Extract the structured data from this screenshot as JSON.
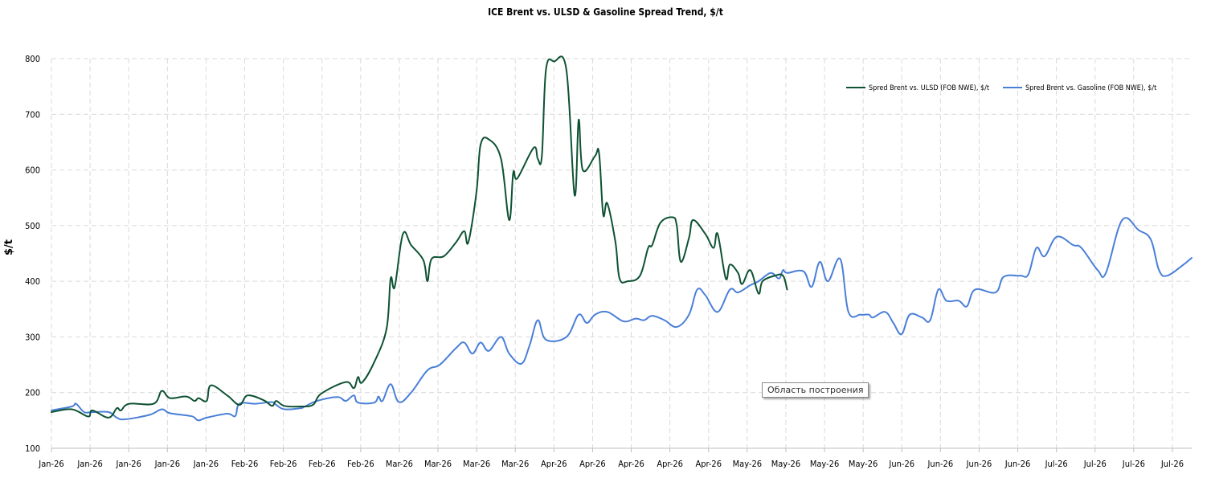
{
  "chart_data": {
    "type": "line",
    "title": "ICE Brent vs. ULSD & Gasoline Spread Trend, $/t",
    "xlabel": "",
    "ylabel": "$/t",
    "ylim": [
      100,
      800
    ],
    "yticks": [
      100,
      200,
      300,
      400,
      500,
      600,
      700,
      800
    ],
    "grid": true,
    "legend_position": "top-right",
    "x_tick_labels": [
      "Jan-26",
      "Jan-26",
      "Jan-26",
      "Jan-26",
      "Jan-26",
      "Feb-26",
      "Feb-26",
      "Feb-26",
      "Feb-26",
      "Mar-26",
      "Mar-26",
      "Mar-26",
      "Mar-26",
      "Apr-26",
      "Apr-26",
      "Apr-26",
      "Apr-26",
      "Apr-26",
      "May-26",
      "May-26",
      "May-26",
      "May-26",
      "Jun-26",
      "Jun-26",
      "Jun-26",
      "Jun-26",
      "Jul-26",
      "Jul-26",
      "Jul-26",
      "Jul-26"
    ],
    "x_count": 145,
    "series": [
      {
        "name": "Spred Brent vs. ULSD (FOB NWE), $/t",
        "color": "#0e5233",
        "points": [
          [
            0,
            165
          ],
          [
            5,
            170
          ],
          [
            9,
            157
          ],
          [
            10,
            168
          ],
          [
            14,
            155
          ],
          [
            16,
            172
          ],
          [
            17,
            168
          ],
          [
            19,
            180
          ],
          [
            25,
            180
          ],
          [
            27,
            203
          ],
          [
            29,
            190
          ],
          [
            33,
            193
          ],
          [
            35,
            185
          ],
          [
            36,
            190
          ],
          [
            38,
            185
          ],
          [
            39,
            213
          ],
          [
            43,
            195
          ],
          [
            46,
            178
          ],
          [
            48,
            195
          ],
          [
            52,
            186
          ],
          [
            54,
            176
          ],
          [
            55,
            185
          ],
          [
            57,
            176
          ],
          [
            61,
            175
          ],
          [
            64,
            178
          ],
          [
            66,
            198
          ],
          [
            72,
            219
          ],
          [
            74,
            208
          ],
          [
            75,
            228
          ],
          [
            76,
            218
          ],
          [
            79,
            255
          ],
          [
            82,
            315
          ],
          [
            83,
            405
          ],
          [
            84,
            390
          ],
          [
            86,
            485
          ],
          [
            88,
            465
          ],
          [
            91,
            438
          ],
          [
            92,
            400
          ],
          [
            93,
            440
          ],
          [
            96,
            445
          ],
          [
            99,
            470
          ],
          [
            101,
            490
          ],
          [
            102,
            470
          ],
          [
            104,
            560
          ],
          [
            105,
            645
          ],
          [
            107,
            655
          ],
          [
            110,
            620
          ],
          [
            112,
            510
          ],
          [
            113,
            595
          ],
          [
            114,
            585
          ],
          [
            118,
            640
          ],
          [
            119,
            620
          ],
          [
            120,
            625
          ],
          [
            121,
            780
          ],
          [
            123,
            795
          ],
          [
            126,
            780
          ],
          [
            128,
            555
          ],
          [
            129,
            690
          ],
          [
            130,
            600
          ],
          [
            133,
            625
          ],
          [
            134,
            630
          ],
          [
            135,
            520
          ],
          [
            136,
            540
          ],
          [
            138,
            470
          ],
          [
            139,
            405
          ],
          [
            141,
            400
          ],
          [
            144,
            410
          ],
          [
            146,
            460
          ],
          [
            147,
            465
          ],
          [
            149,
            505
          ],
          [
            152,
            515
          ],
          [
            153,
            500
          ],
          [
            154,
            435
          ],
          [
            156,
            478
          ],
          [
            157,
            510
          ],
          [
            160,
            485
          ],
          [
            162,
            460
          ],
          [
            163,
            485
          ],
          [
            165,
            405
          ],
          [
            166,
            430
          ],
          [
            168,
            415
          ],
          [
            169,
            395
          ],
          [
            171,
            420
          ],
          [
            173,
            378
          ],
          [
            174,
            400
          ],
          [
            177,
            410
          ],
          [
            179,
            410
          ],
          [
            180,
            385
          ]
        ]
      },
      {
        "name": "Spred Brent vs. Gasoline (FOB NWE), $/t",
        "color": "#4a7fd8",
        "points": [
          [
            0,
            168
          ],
          [
            5,
            175
          ],
          [
            6,
            180
          ],
          [
            8,
            165
          ],
          [
            10,
            165
          ],
          [
            14,
            165
          ],
          [
            16,
            155
          ],
          [
            18,
            152
          ],
          [
            24,
            160
          ],
          [
            27,
            170
          ],
          [
            29,
            163
          ],
          [
            34,
            158
          ],
          [
            35,
            155
          ],
          [
            36,
            150
          ],
          [
            38,
            155
          ],
          [
            43,
            162
          ],
          [
            45,
            158
          ],
          [
            46,
            180
          ],
          [
            50,
            180
          ],
          [
            54,
            183
          ],
          [
            55,
            178
          ],
          [
            57,
            170
          ],
          [
            61,
            172
          ],
          [
            62,
            175
          ],
          [
            65,
            185
          ],
          [
            70,
            192
          ],
          [
            72,
            185
          ],
          [
            74,
            195
          ],
          [
            75,
            182
          ],
          [
            79,
            182
          ],
          [
            80,
            193
          ],
          [
            81,
            185
          ],
          [
            83,
            215
          ],
          [
            85,
            183
          ],
          [
            88,
            200
          ],
          [
            92,
            240
          ],
          [
            95,
            250
          ],
          [
            99,
            280
          ],
          [
            101,
            290
          ],
          [
            103,
            270
          ],
          [
            105,
            290
          ],
          [
            107,
            275
          ],
          [
            110,
            300
          ],
          [
            112,
            270
          ],
          [
            115,
            252
          ],
          [
            117,
            285
          ],
          [
            119,
            330
          ],
          [
            121,
            295
          ],
          [
            126,
            300
          ],
          [
            129,
            340
          ],
          [
            131,
            325
          ],
          [
            133,
            340
          ],
          [
            136,
            345
          ],
          [
            140,
            328
          ],
          [
            143,
            333
          ],
          [
            145,
            330
          ],
          [
            147,
            338
          ],
          [
            150,
            330
          ],
          [
            153,
            318
          ],
          [
            156,
            340
          ],
          [
            158,
            385
          ],
          [
            160,
            375
          ],
          [
            163,
            345
          ],
          [
            166,
            385
          ],
          [
            168,
            380
          ],
          [
            171,
            393
          ],
          [
            173,
            400
          ],
          [
            176,
            415
          ],
          [
            178,
            405
          ],
          [
            179,
            420
          ],
          [
            180,
            415
          ],
          [
            184,
            418
          ],
          [
            186,
            390
          ],
          [
            188,
            435
          ],
          [
            190,
            400
          ],
          [
            193,
            440
          ],
          [
            195,
            345
          ],
          [
            198,
            340
          ],
          [
            200,
            340
          ],
          [
            201,
            335
          ],
          [
            204,
            345
          ],
          [
            206,
            325
          ],
          [
            208,
            305
          ],
          [
            210,
            340
          ],
          [
            213,
            335
          ],
          [
            215,
            330
          ],
          [
            217,
            385
          ],
          [
            219,
            365
          ],
          [
            222,
            365
          ],
          [
            224,
            355
          ],
          [
            226,
            385
          ],
          [
            231,
            380
          ],
          [
            233,
            408
          ],
          [
            237,
            410
          ],
          [
            239,
            412
          ],
          [
            241,
            460
          ],
          [
            243,
            445
          ],
          [
            246,
            480
          ],
          [
            250,
            465
          ],
          [
            252,
            460
          ],
          [
            256,
            420
          ],
          [
            258,
            415
          ],
          [
            262,
            510
          ],
          [
            266,
            492
          ],
          [
            269,
            475
          ],
          [
            271,
            420
          ],
          [
            273,
            410
          ],
          [
            277,
            430
          ],
          [
            279,
            442
          ]
        ]
      }
    ]
  },
  "tooltip_text": "Область построения"
}
